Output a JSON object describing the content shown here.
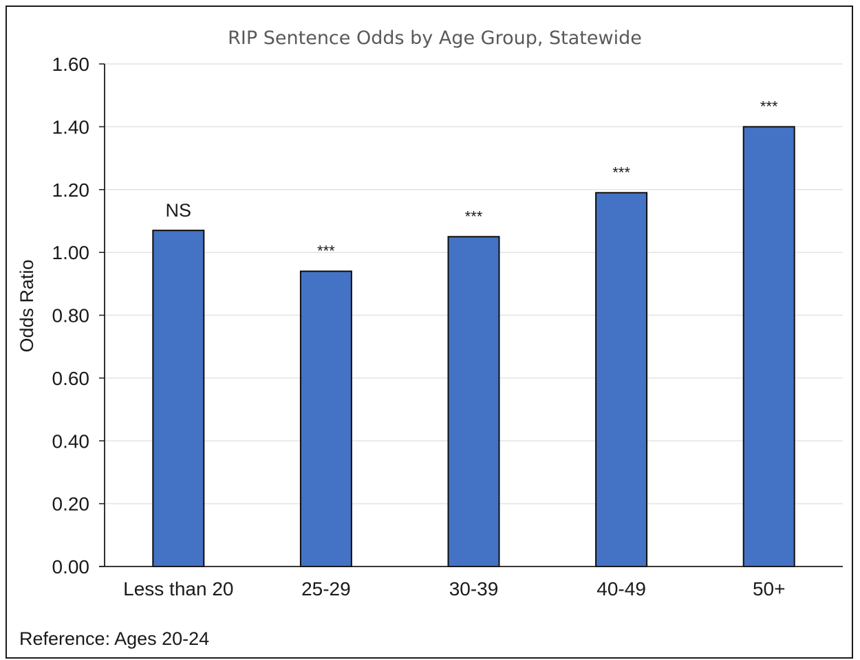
{
  "chart_data": {
    "type": "bar",
    "title": "RIP Sentence Odds by Age Group, Statewide",
    "ylabel": "Odds Ratio",
    "xlabel": "",
    "categories": [
      "Less than 20",
      "25-29",
      "30-39",
      "40-49",
      "50+"
    ],
    "values": [
      1.07,
      0.94,
      1.05,
      1.19,
      1.4
    ],
    "annotations": [
      "NS",
      "***",
      "***",
      "***",
      "***"
    ],
    "ylim": [
      0,
      1.6
    ],
    "yticks": [
      0,
      0.2,
      0.4,
      0.6,
      0.8,
      1.0,
      1.2,
      1.4,
      1.6
    ],
    "ytick_labels": [
      "0.00",
      "0.20",
      "0.40",
      "0.60",
      "0.80",
      "1.00",
      "1.20",
      "1.40",
      "1.60"
    ],
    "grid": true,
    "legend": "none",
    "bar_color": "#4472c4",
    "note": "Reference: Ages 20-24"
  }
}
